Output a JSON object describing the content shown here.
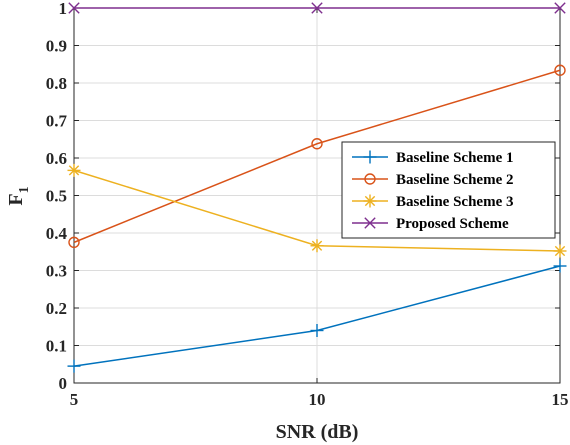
{
  "chart_data": {
    "type": "line",
    "title": "",
    "xlabel": "SNR (dB)",
    "ylabel_main": "F",
    "ylabel_sub": "1",
    "x": [
      5,
      10,
      15
    ],
    "xlim": [
      5,
      15
    ],
    "ylim": [
      0,
      1
    ],
    "xticks": [
      5,
      10,
      15
    ],
    "yticks": [
      0,
      0.1,
      0.2,
      0.3,
      0.4,
      0.5,
      0.6,
      0.7,
      0.8,
      0.9,
      1
    ],
    "ytick_labels": [
      "0",
      "0.1",
      "0.2",
      "0.3",
      "0.4",
      "0.5",
      "0.6",
      "0.7",
      "0.8",
      "0.9",
      "1"
    ],
    "xtick_labels": [
      "5",
      "10",
      "15"
    ],
    "grid": true,
    "legend_position": "center-right",
    "series": [
      {
        "name": "Baseline Scheme 1",
        "values": [
          0.045,
          0.14,
          0.312
        ],
        "color": "#0072BD",
        "marker": "plus"
      },
      {
        "name": "Baseline Scheme 2",
        "values": [
          0.375,
          0.638,
          0.834
        ],
        "color": "#D95319",
        "marker": "circle"
      },
      {
        "name": "Baseline Scheme 3",
        "values": [
          0.567,
          0.366,
          0.352
        ],
        "color": "#EDB120",
        "marker": "asterisk"
      },
      {
        "name": "Proposed Scheme",
        "values": [
          1.0,
          1.0,
          1.0
        ],
        "color": "#7E2F8E",
        "marker": "cross"
      }
    ]
  }
}
